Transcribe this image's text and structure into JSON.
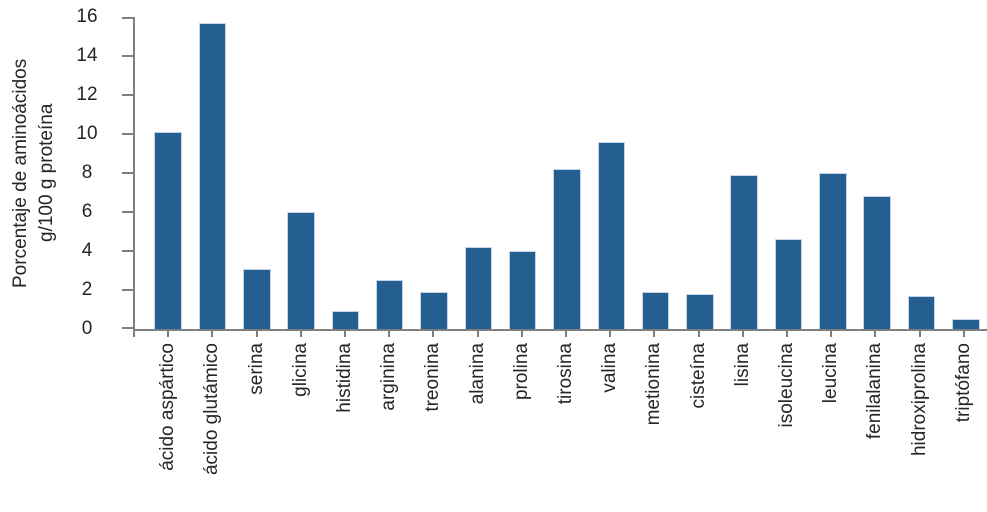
{
  "chart_data": {
    "type": "bar",
    "title": "",
    "ylabel_line1": "Porcentaje de aminoácidos",
    "ylabel_line2": "g/100 g proteína",
    "categories": [
      "ácido aspártico",
      "ácido glutámico",
      "serina",
      "glicina",
      "histidina",
      "arginina",
      "treonina",
      "alanina",
      "prolina",
      "tirosina",
      "valina",
      "metionina",
      "cisteína",
      "lisina",
      "isoleucina",
      "leucina",
      "fenilalanina",
      "hidroxiprolina",
      "triptófano"
    ],
    "values": [
      10.1,
      15.7,
      3.1,
      6.0,
      0.9,
      2.5,
      1.9,
      4.2,
      4.0,
      8.2,
      9.6,
      1.9,
      1.8,
      7.9,
      4.6,
      8.0,
      6.8,
      1.7,
      0.5
    ],
    "ylim": [
      0,
      16
    ],
    "yticks": [
      0,
      2,
      4,
      6,
      8,
      10,
      12,
      14,
      16
    ],
    "grid": false,
    "legend": "none",
    "bar_color": "#255E91",
    "bar_border_color": "#C5D5E8",
    "axis_color": "#7F7F7F",
    "text_color": "#262626",
    "background": "#FFFFFF"
  }
}
